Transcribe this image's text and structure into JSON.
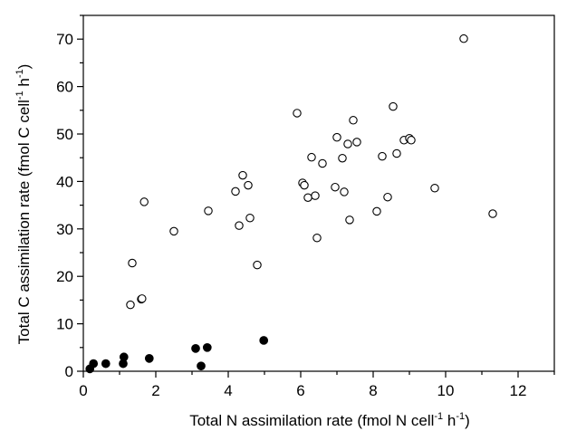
{
  "chart_data": {
    "type": "scatter",
    "xlabel": "Total N assimilation rate (fmol N cell-1 h-1)",
    "ylabel": "Total C assimilation rate (fmol C cell-1 h-1)",
    "xlabel_parts": {
      "a": "Total N assimilation rate (fmol N cell",
      "sup1": "-1",
      "b": " h",
      "sup2": "-1",
      "c": ")"
    },
    "ylabel_parts": {
      "a": "Total C assimilation rate (fmol C cell",
      "sup1": "-1",
      "b": " h",
      "sup2": "-1",
      "c": ")"
    },
    "xlim": [
      0,
      13
    ],
    "ylim": [
      0,
      75
    ],
    "xticks": [
      0,
      2,
      4,
      6,
      8,
      10,
      12
    ],
    "yticks": [
      0,
      10,
      20,
      30,
      40,
      50,
      60,
      70
    ],
    "xtick_labels": [
      "0",
      "2",
      "4",
      "6",
      "8",
      "10",
      "12"
    ],
    "ytick_labels": [
      "0",
      "10",
      "20",
      "30",
      "40",
      "50",
      "60",
      "70"
    ],
    "grid": false,
    "series": [
      {
        "marker": "open-circle",
        "points": [
          [
            1.3,
            14.0
          ],
          [
            1.35,
            22.8
          ],
          [
            1.6,
            15.2
          ],
          [
            1.62,
            15.3
          ],
          [
            1.68,
            35.7
          ],
          [
            2.5,
            29.5
          ],
          [
            3.45,
            33.8
          ],
          [
            4.2,
            37.9
          ],
          [
            4.3,
            30.7
          ],
          [
            4.4,
            41.3
          ],
          [
            4.55,
            39.2
          ],
          [
            4.6,
            32.3
          ],
          [
            4.8,
            22.4
          ],
          [
            5.9,
            54.4
          ],
          [
            6.05,
            39.7
          ],
          [
            6.1,
            39.2
          ],
          [
            6.2,
            36.6
          ],
          [
            6.3,
            45.1
          ],
          [
            6.4,
            37.0
          ],
          [
            6.45,
            28.1
          ],
          [
            6.6,
            43.8
          ],
          [
            6.95,
            38.8
          ],
          [
            7.0,
            49.3
          ],
          [
            7.15,
            44.9
          ],
          [
            7.2,
            37.8
          ],
          [
            7.3,
            47.9
          ],
          [
            7.35,
            31.9
          ],
          [
            7.45,
            52.9
          ],
          [
            7.55,
            48.3
          ],
          [
            8.1,
            33.7
          ],
          [
            8.25,
            45.3
          ],
          [
            8.4,
            36.7
          ],
          [
            8.55,
            55.8
          ],
          [
            8.65,
            45.9
          ],
          [
            8.85,
            48.7
          ],
          [
            9.0,
            49.1
          ],
          [
            9.05,
            48.7
          ],
          [
            9.7,
            38.6
          ],
          [
            10.5,
            70.1
          ],
          [
            11.3,
            33.2
          ]
        ]
      },
      {
        "marker": "filled-circle",
        "points": [
          [
            0.18,
            0.5
          ],
          [
            0.28,
            1.6
          ],
          [
            0.62,
            1.6
          ],
          [
            1.1,
            1.6
          ],
          [
            1.12,
            3.0
          ],
          [
            1.82,
            2.7
          ],
          [
            3.1,
            4.8
          ],
          [
            3.25,
            1.1
          ],
          [
            3.42,
            5.0
          ],
          [
            4.98,
            6.5
          ]
        ]
      }
    ]
  }
}
